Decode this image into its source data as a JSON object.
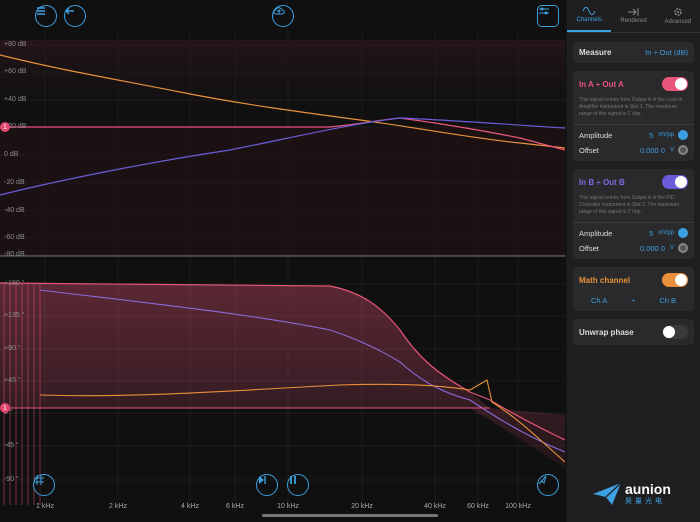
{
  "plot": {
    "mag_ticks": [
      "+80 dB",
      "+60 dB",
      "+40 dB",
      "+20 dB",
      "0 dB",
      "-20 dB",
      "-40 dB",
      "-60 dB",
      "-80 dB"
    ],
    "phase_ticks": [
      "+180 °",
      "+135 °",
      "+90 °",
      "+45 °",
      "0 °",
      "-45 °",
      "-90 °"
    ],
    "freq_ticks": [
      "1 kHz",
      "2 kHz",
      "4 kHz",
      "6 kHz",
      "10 kHz",
      "20 kHz",
      "40 kHz",
      "60 kHz",
      "100 kHz"
    ],
    "marker_label": "1",
    "colors": {
      "ch_a": "#e8557a",
      "ch_b": "#6a5cd8",
      "math": "#e8913a",
      "accent": "#3da0e0"
    }
  },
  "panel": {
    "tabs": [
      {
        "label": "Channels",
        "icon": "wave-icon"
      },
      {
        "label": "Rendered",
        "icon": "export-icon"
      },
      {
        "label": "Advanced",
        "icon": "gear-icon"
      }
    ],
    "measure": {
      "label": "Measure",
      "value": "In ÷ Out (dB)"
    },
    "ch_a": {
      "title": "In A ÷ Out A",
      "desc": "This signal comes from Output A of the Lock-in Amplifier instrument in Slot 1. The maximum range of this signal is 2 Vpp.",
      "amplitude_label": "Amplitude",
      "amplitude_value": "5",
      "amplitude_unit": "mVpp",
      "offset_label": "Offset",
      "offset_value": "0.000 0",
      "offset_unit": "V"
    },
    "ch_b": {
      "title": "In B ÷ Out B",
      "desc": "This signal comes from Output A of the PID Controller instrument in Slot 3. The maximum range of this signal is 2 Vpp.",
      "amplitude_label": "Amplitude",
      "amplitude_value": "5",
      "amplitude_unit": "mVpp",
      "offset_label": "Offset",
      "offset_value": "0.000 0",
      "offset_unit": "V"
    },
    "math": {
      "title": "Math channel",
      "left": "Ch A",
      "op": "÷",
      "right": "Ch B"
    },
    "unwrap": {
      "label": "Unwrap phase"
    }
  },
  "logo": {
    "name": "aunion",
    "sub": "昊量光电"
  }
}
